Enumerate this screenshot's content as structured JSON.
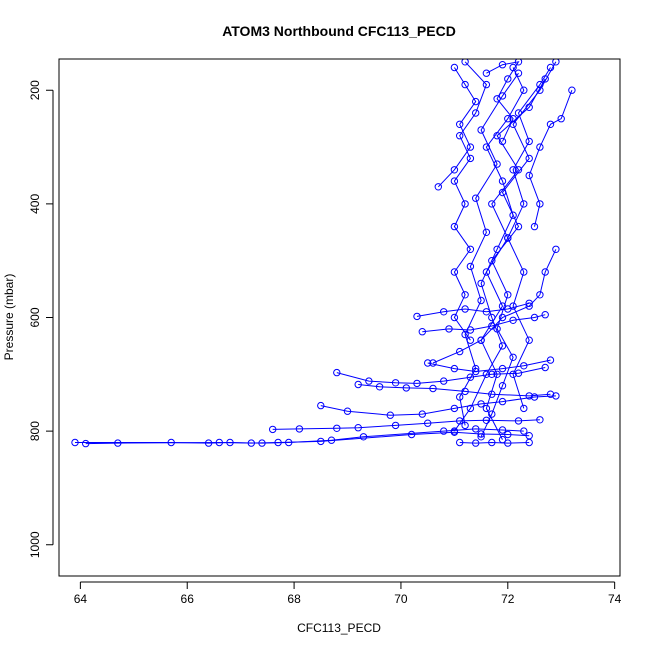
{
  "chart_data": {
    "type": "line",
    "title": "ATOM3 Northbound CFC113_PECD",
    "xlabel": "CFC113_PECD",
    "ylabel": "Pressure (mbar)",
    "xlim": [
      63.6,
      74.1
    ],
    "ylim": [
      1055,
      145
    ],
    "y_reversed": true,
    "grid": false,
    "legend": "none",
    "x_ticks": [
      64,
      66,
      68,
      70,
      72,
      74
    ],
    "y_ticks": [
      200,
      400,
      600,
      800,
      1000
    ],
    "colors": {
      "series": "#0000ff",
      "axis": "#000000"
    },
    "series": [
      {
        "values": [
          [
            63.9,
            820
          ],
          [
            65.7,
            820
          ],
          [
            66.4,
            821
          ],
          [
            66.8,
            820
          ],
          [
            67.2,
            821
          ],
          [
            67.7,
            820
          ],
          [
            68.5,
            818
          ],
          [
            70.2,
            806
          ],
          [
            71.0,
            802
          ],
          [
            71.5,
            805
          ],
          [
            72.0,
            806
          ],
          [
            72.4,
            808
          ]
        ]
      },
      {
        "values": [
          [
            64.1,
            822
          ],
          [
            64.7,
            821
          ],
          [
            66.6,
            820
          ],
          [
            67.4,
            821
          ],
          [
            67.9,
            820
          ],
          [
            68.7,
            816
          ],
          [
            69.3,
            810
          ],
          [
            70.8,
            800
          ],
          [
            71.4,
            796
          ],
          [
            71.9,
            798
          ],
          [
            72.3,
            800
          ]
        ]
      },
      {
        "values": [
          [
            67.6,
            797
          ],
          [
            68.1,
            796
          ],
          [
            68.8,
            795
          ],
          [
            69.2,
            794
          ],
          [
            69.9,
            790
          ],
          [
            70.5,
            786
          ],
          [
            71.1,
            782
          ],
          [
            71.6,
            781
          ],
          [
            72.2,
            782
          ],
          [
            72.6,
            780
          ]
        ]
      },
      {
        "values": [
          [
            68.5,
            755
          ],
          [
            69.0,
            765
          ],
          [
            69.8,
            772
          ],
          [
            70.4,
            770
          ],
          [
            71.0,
            760
          ],
          [
            71.5,
            752
          ],
          [
            71.9,
            748
          ],
          [
            72.5,
            740
          ],
          [
            72.9,
            738
          ]
        ]
      },
      {
        "values": [
          [
            68.8,
            697
          ],
          [
            69.4,
            712
          ],
          [
            69.9,
            715
          ],
          [
            70.3,
            716
          ],
          [
            70.8,
            712
          ],
          [
            71.3,
            705
          ],
          [
            71.7,
            700
          ],
          [
            72.2,
            698
          ],
          [
            72.7,
            688
          ]
        ]
      },
      {
        "values": [
          [
            69.2,
            718
          ],
          [
            69.6,
            722
          ],
          [
            70.1,
            724
          ],
          [
            70.6,
            725
          ],
          [
            71.2,
            730
          ],
          [
            71.7,
            735
          ],
          [
            72.4,
            738
          ],
          [
            72.8,
            735
          ]
        ]
      },
      {
        "values": [
          [
            70.6,
            680
          ],
          [
            71.1,
            660
          ],
          [
            71.5,
            640
          ],
          [
            71.9,
            600
          ],
          [
            72.4,
            580
          ],
          [
            72.6,
            560
          ],
          [
            72.7,
            520
          ],
          [
            72.9,
            480
          ]
        ]
      },
      {
        "values": [
          [
            71.0,
            800
          ],
          [
            71.3,
            760
          ],
          [
            71.6,
            700
          ],
          [
            71.9,
            650
          ],
          [
            71.7,
            600
          ],
          [
            71.5,
            540
          ],
          [
            71.8,
            480
          ],
          [
            72.1,
            420
          ],
          [
            71.9,
            360
          ],
          [
            71.6,
            300
          ],
          [
            72.0,
            250
          ],
          [
            72.3,
            200
          ],
          [
            72.1,
            160
          ]
        ]
      },
      {
        "values": [
          [
            71.2,
            790
          ],
          [
            71.1,
            740
          ],
          [
            71.4,
            690
          ],
          [
            71.2,
            630
          ],
          [
            71.5,
            570
          ],
          [
            71.3,
            510
          ],
          [
            71.6,
            450
          ],
          [
            71.4,
            390
          ],
          [
            71.8,
            330
          ],
          [
            71.5,
            270
          ],
          [
            71.9,
            210
          ],
          [
            72.2,
            170
          ]
        ]
      },
      {
        "values": [
          [
            71.5,
            810
          ],
          [
            71.7,
            770
          ],
          [
            71.9,
            720
          ],
          [
            72.1,
            670
          ],
          [
            71.8,
            620
          ],
          [
            72.0,
            560
          ],
          [
            71.7,
            500
          ],
          [
            72.2,
            440
          ],
          [
            71.9,
            380
          ],
          [
            72.4,
            320
          ],
          [
            72.1,
            260
          ],
          [
            72.6,
            200
          ],
          [
            72.9,
            150
          ]
        ]
      },
      {
        "values": [
          [
            71.9,
            815
          ],
          [
            71.6,
            760
          ],
          [
            71.8,
            700
          ],
          [
            71.5,
            640
          ],
          [
            71.9,
            580
          ],
          [
            71.6,
            520
          ],
          [
            72.0,
            460
          ],
          [
            71.7,
            400
          ],
          [
            72.2,
            340
          ],
          [
            71.8,
            280
          ],
          [
            72.4,
            230
          ],
          [
            72.7,
            180
          ]
        ]
      },
      {
        "values": [
          [
            71.3,
            640
          ],
          [
            71.0,
            600
          ],
          [
            71.2,
            560
          ],
          [
            71.0,
            520
          ],
          [
            71.3,
            480
          ],
          [
            71.0,
            440
          ],
          [
            71.2,
            400
          ],
          [
            71.0,
            360
          ],
          [
            71.3,
            320
          ],
          [
            71.1,
            280
          ],
          [
            71.4,
            240
          ],
          [
            71.6,
            190
          ],
          [
            71.2,
            150
          ]
        ]
      },
      {
        "values": [
          [
            72.3,
            760
          ],
          [
            72.1,
            700
          ],
          [
            72.4,
            640
          ],
          [
            72.1,
            580
          ],
          [
            72.3,
            520
          ],
          [
            72.0,
            460
          ],
          [
            72.3,
            400
          ],
          [
            72.1,
            340
          ],
          [
            72.4,
            290
          ],
          [
            72.2,
            240
          ],
          [
            72.6,
            190
          ],
          [
            72.8,
            160
          ]
        ]
      },
      {
        "values": [
          [
            70.7,
            370
          ],
          [
            71.0,
            340
          ],
          [
            71.3,
            300
          ],
          [
            71.1,
            260
          ],
          [
            71.4,
            220
          ],
          [
            71.2,
            190
          ],
          [
            71.0,
            160
          ]
        ]
      },
      {
        "values": [
          [
            72.5,
            440
          ],
          [
            72.6,
            400
          ],
          [
            72.4,
            350
          ],
          [
            72.6,
            300
          ],
          [
            72.8,
            260
          ],
          [
            73.0,
            250
          ],
          [
            73.2,
            200
          ]
        ]
      },
      {
        "values": [
          [
            70.4,
            625
          ],
          [
            70.9,
            620
          ],
          [
            71.3,
            622
          ],
          [
            71.7,
            615
          ],
          [
            72.1,
            605
          ],
          [
            72.5,
            600
          ],
          [
            72.7,
            595
          ]
        ]
      },
      {
        "values": [
          [
            70.3,
            598
          ],
          [
            70.8,
            590
          ],
          [
            71.2,
            585
          ],
          [
            71.6,
            590
          ],
          [
            72.0,
            585
          ],
          [
            72.4,
            575
          ]
        ]
      },
      {
        "values": [
          [
            70.5,
            680
          ],
          [
            71.0,
            690
          ],
          [
            71.4,
            695
          ],
          [
            71.9,
            690
          ],
          [
            72.3,
            685
          ],
          [
            72.8,
            675
          ]
        ]
      },
      {
        "values": [
          [
            71.1,
            820
          ],
          [
            71.4,
            821
          ],
          [
            71.7,
            820
          ],
          [
            72.0,
            821
          ],
          [
            72.4,
            820
          ]
        ]
      },
      {
        "values": [
          [
            71.6,
            170
          ],
          [
            71.9,
            155
          ],
          [
            72.2,
            150
          ],
          [
            72.0,
            180
          ],
          [
            71.8,
            215
          ],
          [
            72.1,
            250
          ],
          [
            71.9,
            290
          ]
        ]
      }
    ]
  }
}
